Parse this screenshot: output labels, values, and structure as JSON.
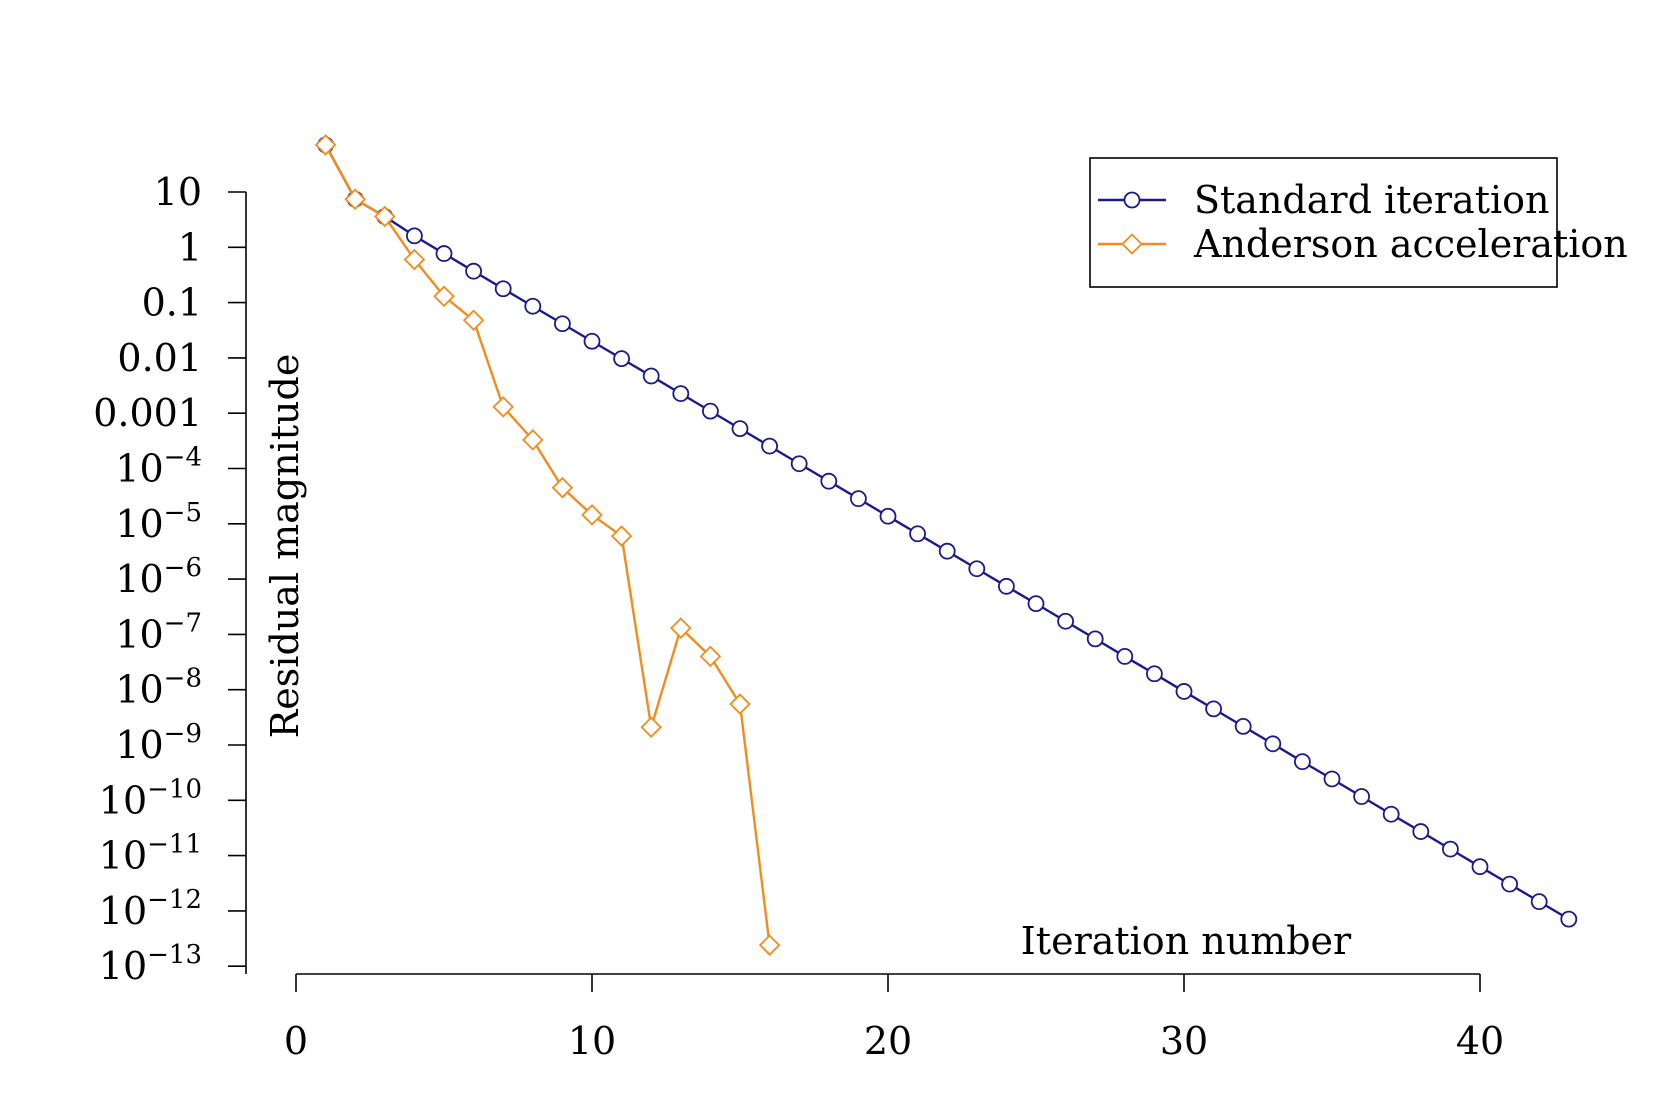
{
  "chart_data": {
    "type": "line",
    "xlabel": "Iteration number",
    "ylabel": "Residual magnitude",
    "xlim": [
      0,
      40
    ],
    "ylim_log10": [
      -13,
      1
    ],
    "y_scale": "log",
    "x_ticks": [
      0,
      10,
      20,
      30,
      40
    ],
    "x_tick_labels": [
      "0",
      "10",
      "20",
      "30",
      "40"
    ],
    "y_ticks": [
      {
        "exp": 1,
        "label": "10"
      },
      {
        "exp": 0,
        "label": "1"
      },
      {
        "exp": -1,
        "label": "0.1"
      },
      {
        "exp": -2,
        "label": "0.01"
      },
      {
        "exp": -3,
        "label": "0.001"
      },
      {
        "exp": -4,
        "base": "10",
        "sup": "−4"
      },
      {
        "exp": -5,
        "base": "10",
        "sup": "−5"
      },
      {
        "exp": -6,
        "base": "10",
        "sup": "−6"
      },
      {
        "exp": -7,
        "base": "10",
        "sup": "−7"
      },
      {
        "exp": -8,
        "base": "10",
        "sup": "−8"
      },
      {
        "exp": -9,
        "base": "10",
        "sup": "−9"
      },
      {
        "exp": -10,
        "base": "10",
        "sup": "−10"
      },
      {
        "exp": -11,
        "base": "10",
        "sup": "−11"
      },
      {
        "exp": -12,
        "base": "10",
        "sup": "−12"
      },
      {
        "exp": -13,
        "base": "10",
        "sup": "−13"
      }
    ],
    "legend_position": "top-right",
    "grid": false,
    "series": [
      {
        "name": "Standard iteration",
        "color": "#1a1a8c",
        "marker": "circle",
        "x": [
          1,
          2,
          3,
          4,
          5,
          6,
          7,
          8,
          9,
          10,
          11,
          12,
          13,
          14,
          15,
          16,
          17,
          18,
          19,
          20,
          21,
          22,
          23,
          24,
          25,
          26,
          27,
          28,
          29,
          30,
          31,
          32,
          33,
          34,
          35,
          36,
          37,
          38,
          39,
          40,
          41,
          42,
          43
        ],
        "y": [
          71,
          7.4,
          3.6,
          1.61,
          0.77,
          0.37,
          0.178,
          0.086,
          0.0415,
          0.02,
          0.0097,
          0.0047,
          0.00226,
          0.00109,
          0.000526,
          0.000254,
          0.000122,
          5.9e-05,
          2.85e-05,
          1.37e-05,
          6.6e-06,
          3.2e-06,
          1.54e-06,
          7.4e-07,
          3.6e-07,
          1.73e-07,
          8.3e-08,
          4e-08,
          1.94e-08,
          9.3e-09,
          4.5e-09,
          2.17e-09,
          1.05e-09,
          5e-10,
          2.43e-10,
          1.17e-10,
          5.6e-11,
          2.72e-11,
          1.31e-11,
          6.3e-12,
          3.05e-12,
          1.47e-12,
          7.1e-13
        ]
      },
      {
        "name": "Anderson acceleration",
        "color": "#f28c1e",
        "marker": "diamond",
        "x": [
          1,
          2,
          3,
          4,
          5,
          6,
          7,
          8,
          9,
          10,
          11,
          12,
          13,
          14,
          15,
          16
        ],
        "y": [
          71,
          7.4,
          3.6,
          0.6,
          0.13,
          0.048,
          0.0013,
          0.00033,
          4.5e-05,
          1.45e-05,
          6e-06,
          2.1e-09,
          1.3e-07,
          4e-08,
          5.5e-09,
          2.4e-13
        ]
      }
    ]
  }
}
